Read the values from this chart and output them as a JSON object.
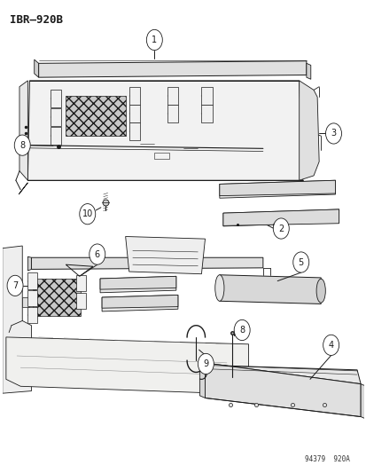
{
  "title": "IBR–920B",
  "watermark": "94379  920A",
  "bg_color": "#ffffff",
  "fig_width": 4.14,
  "fig_height": 5.33,
  "dpi": 100,
  "line_color": "#1a1a1a",
  "title_fontsize": 9,
  "callout_fontsize": 7,
  "watermark_fontsize": 5.5
}
